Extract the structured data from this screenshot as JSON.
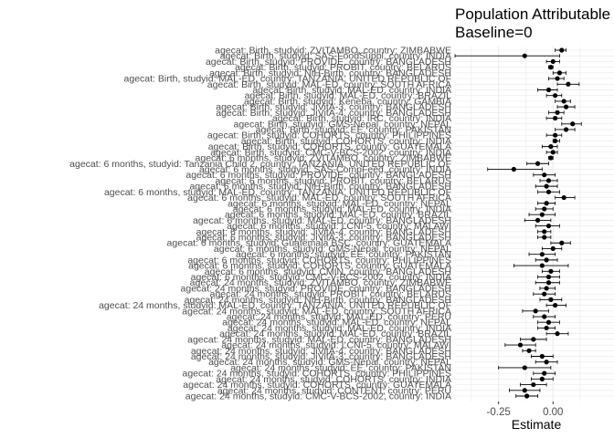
{
  "chart_data": {
    "type": "scatter",
    "subtype": "forest-plot",
    "title": "Population Attributable",
    "subtitle": "Baseline=0",
    "xlabel": "Estimate",
    "ylabel": "",
    "xlim": [
      -0.45,
      0.28
    ],
    "x_ticks": [
      {
        "value": -0.25,
        "label": "-0.25"
      },
      {
        "value": 0.0,
        "label": "0.00"
      }
    ],
    "grid": true,
    "legend": "none",
    "point_color": "#000000",
    "panel_color": "#ffffff",
    "grid_color": "#ebebeb",
    "categories": [
      "agecat: Birth, studyid: ZVITAMBO, country: ZIMBABWE",
      "agecat: Birth, studyid: SAS-FoodSuppl, country: INDIA",
      "agecat: Birth, studyid: PROVIDE, country: BANGLADESH",
      "agecat: Birth, studyid: PROBIT, country: BELARUS",
      "agecat: Birth, studyid: NIH-Birth, country: BANGLADESH",
      "agecat: Birth, studyid: MAL-ED, country: TANZANIA, UNITED REPUBLIC OF",
      "agecat: Birth, studyid: MAL-ED, country: SOUTH AFRICA",
      "agecat: Birth, studyid: MAL-ED, country: INDIA",
      "agecat: Birth, studyid: MAL-ED, country: BRAZIL",
      "agecat: Birth, studyid: Keneba, country: GAMBIA",
      "agecat: Birth, studyid: JiVitA-3, country: BANGLADESH",
      "agecat: Birth, studyid: JiVitA-4, country: BANGLADESH",
      "agecat: Birth, studyid: IRC, country: INDIA",
      "agecat: Birth, studyid: GMS-Nepal, country: NEPAL",
      "agecat: Birth, studyid: EE, country: PAKISTAN",
      "agecat: Birth, studyid: COHORTS, country: PHILIPPINES",
      "agecat: Birth, studyid: COHORTS, country: INDIA",
      "agecat: Birth, studyid: COHORTS, country: GUATEMALA",
      "agecat: Birth, studyid: CMC-V-BCS-2002, country: INDIA",
      "agecat: 6 months, studyid: ZVITAMBO, country: ZIMBABWE",
      "agecat: 6 months, studyid: Tanzania Child 2, country: TANZANIA, UNITED REPUBLIC OF",
      "agecat: 6 months, studyid: SAS-CompFeed, country: INDIA",
      "agecat: 6 months, studyid: PROVIDE, country: BANGLADESH",
      "agecat: 6 months, studyid: PROBIT, country: BELARUS",
      "agecat: 6 months, studyid: NIH-Birth, country: BANGLADESH",
      "agecat: 6 months, studyid: MAL-ED, country: TANZANIA, UNITED REPUBLIC OF",
      "agecat: 6 months, studyid: MAL-ED, country: SOUTH AFRICA",
      "agecat: 6 months, studyid: MAL-ED, country: NEPAL",
      "agecat: 6 months, studyid: MAL-ED, country: INDIA",
      "agecat: 6 months, studyid: MAL-ED, country: BRAZIL",
      "agecat: 6 months, studyid: MAL-ED, country: BANGLADESH",
      "agecat: 6 months, studyid: LCNI-5, country: MALAWI",
      "agecat: 6 months, studyid: JiVitA-4, country: BANGLADESH",
      "agecat: 6 months, studyid: JiVitA-3, country: BANGLADESH",
      "agecat: 6 months, studyid: Guatemala BSC, country: GUATEMALA",
      "agecat: 6 months, studyid: GMS-Nepal, country: NEPAL",
      "agecat: 6 months, studyid: EE, country: PAKISTAN",
      "agecat: 6 months, studyid: COHORTS, country: PHILIPPINES",
      "agecat: 6 months, studyid: COHORTS, country: GUATEMALA",
      "agecat: 6 months, studyid: CMIN, country: BANGLADESH",
      "agecat: 6 months, studyid: CMC-V-BCS-2002, country: INDIA",
      "agecat: 24 months, studyid: ZVITAMBO, country: ZIMBABWE",
      "agecat: 24 months, studyid: PROVIDE, country: BANGLADESH",
      "agecat: 24 months, studyid: PROBIT, country: BELARUS",
      "agecat: 24 months, studyid: NIH-Birth, country: BANGLADESH",
      "agecat: 24 months, studyid: MAL-ED, country: TANZANIA, UNITED REPUBLIC OF",
      "agecat: 24 months, studyid: MAL-ED, country: SOUTH AFRICA",
      "agecat: 24 months, studyid: MAL-ED, country: PERU",
      "agecat: 24 months, studyid: MAL-ED, country: NEPAL",
      "agecat: 24 months, studyid: MAL-ED, country: INDIA",
      "agecat: 24 months, studyid: MAL-ED, country: BRAZIL",
      "agecat: 24 months, studyid: MAL-ED, country: BANGLADESH",
      "agecat: 24 months, studyid: LCNI-5, country: MALAWI",
      "agecat: 24 months, studyid: JiVitA-4, country: BANGLADESH",
      "agecat: 24 months, studyid: JiVitA-3, country: BANGLADESH",
      "agecat: 24 months, studyid: GMS-Nepal, country: NEPAL",
      "agecat: 24 months, studyid: EE, country: PAKISTAN",
      "agecat: 24 months, studyid: COHORTS, country: PHILIPPINES",
      "agecat: 24 months, studyid: COHORTS, country: INDIA",
      "agecat: 24 months, studyid: COHORTS, country: GUATEMALA",
      "agecat: 24 months, studyid: CONTENT, country: PERU",
      "agecat: 24 months, studyid: CMC-V-BCS-2002, country: INDIA"
    ],
    "estimate": [
      0.04,
      -0.13,
      0.0,
      -0.01,
      0.03,
      0.02,
      0.07,
      -0.02,
      0.01,
      0.05,
      0.06,
      0.02,
      0.01,
      0.09,
      0.06,
      0.01,
      0.01,
      -0.01,
      0.0,
      -0.01,
      -0.07,
      -0.18,
      -0.04,
      -0.02,
      -0.03,
      -0.02,
      0.05,
      -0.03,
      -0.04,
      -0.05,
      -0.07,
      -0.02,
      -0.04,
      -0.04,
      0.04,
      0.0,
      -0.05,
      -0.03,
      -0.05,
      -0.01,
      -0.02,
      -0.02,
      -0.03,
      -0.04,
      -0.01,
      0.01,
      -0.08,
      -0.04,
      -0.02,
      -0.03,
      0.02,
      -0.09,
      -0.15,
      -0.11,
      -0.05,
      -0.03,
      -0.13,
      -0.04,
      -0.05,
      -0.09,
      -0.13,
      -0.12
    ],
    "lower": [
      0.01,
      -0.45,
      -0.03,
      -0.02,
      0.0,
      -0.02,
      0.02,
      -0.07,
      -0.03,
      0.01,
      0.02,
      -0.02,
      -0.03,
      0.04,
      0.01,
      -0.03,
      0.0,
      -0.05,
      -0.03,
      -0.02,
      -0.12,
      -0.3,
      -0.09,
      -0.06,
      -0.08,
      -0.07,
      0.01,
      -0.07,
      -0.08,
      -0.11,
      -0.13,
      -0.08,
      -0.07,
      -0.07,
      -0.01,
      -0.05,
      -0.11,
      -0.08,
      -0.18,
      -0.05,
      -0.07,
      -0.08,
      -0.06,
      -0.09,
      -0.06,
      -0.03,
      -0.14,
      -0.09,
      -0.07,
      -0.07,
      -0.03,
      -0.15,
      -0.22,
      -0.14,
      -0.1,
      -0.08,
      -0.25,
      -0.09,
      -0.1,
      -0.15,
      -0.2,
      -0.17
    ],
    "upper": [
      0.06,
      0.03,
      0.03,
      0.0,
      0.06,
      0.05,
      0.12,
      0.02,
      0.04,
      0.08,
      0.1,
      0.05,
      0.04,
      0.13,
      0.1,
      0.04,
      0.03,
      0.02,
      0.02,
      0.0,
      -0.02,
      -0.05,
      0.01,
      0.02,
      0.02,
      0.03,
      0.1,
      0.01,
      0.0,
      0.01,
      -0.01,
      0.03,
      -0.01,
      -0.01,
      0.08,
      0.04,
      0.01,
      0.02,
      0.07,
      0.03,
      0.03,
      0.03,
      0.01,
      0.01,
      0.04,
      0.06,
      -0.02,
      0.01,
      0.03,
      0.01,
      0.07,
      -0.03,
      -0.08,
      -0.08,
      0.0,
      0.02,
      -0.01,
      0.01,
      0.0,
      -0.03,
      -0.06,
      -0.07
    ]
  }
}
